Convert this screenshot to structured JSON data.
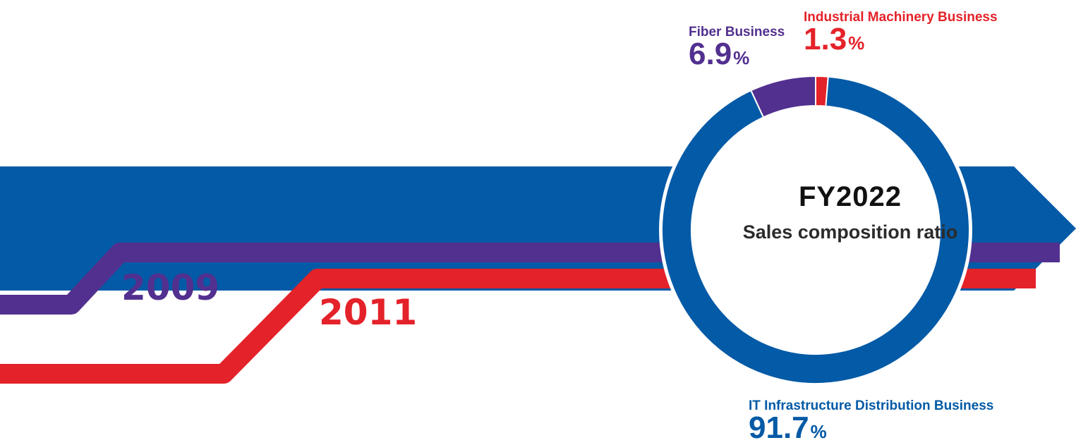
{
  "colors": {
    "it": "#035aa6",
    "fiber": "#52308f",
    "industrial": "#e42229"
  },
  "timeline": {
    "year_fiber": "2009",
    "year_industrial": "2011"
  },
  "center": {
    "title": "FY2022",
    "subtitle": "Sales composition ratio"
  },
  "chart_data": {
    "type": "pie",
    "title": "FY2022",
    "subtitle": "Sales composition ratio",
    "unit": "%",
    "series": [
      {
        "name": "Sales composition ratio",
        "values": [
          {
            "label": "Industrial Machinery Business",
            "value": 1.3,
            "color": "#e42229"
          },
          {
            "label": "IT Infrastructure Distribution Business",
            "value": 91.7,
            "color": "#035aa6"
          },
          {
            "label": "Fiber Business",
            "value": 6.9,
            "color": "#52308f"
          }
        ]
      }
    ],
    "labels": {
      "industrial": {
        "name": "Industrial Machinery Business",
        "value": "1.3",
        "unit": "%"
      },
      "fiber": {
        "name": "Fiber Business",
        "value": "6.9",
        "unit": "%"
      },
      "it": {
        "name": "IT Infrastructure Distribution Business",
        "value": "91.7",
        "unit": "%"
      }
    },
    "legend": false
  }
}
